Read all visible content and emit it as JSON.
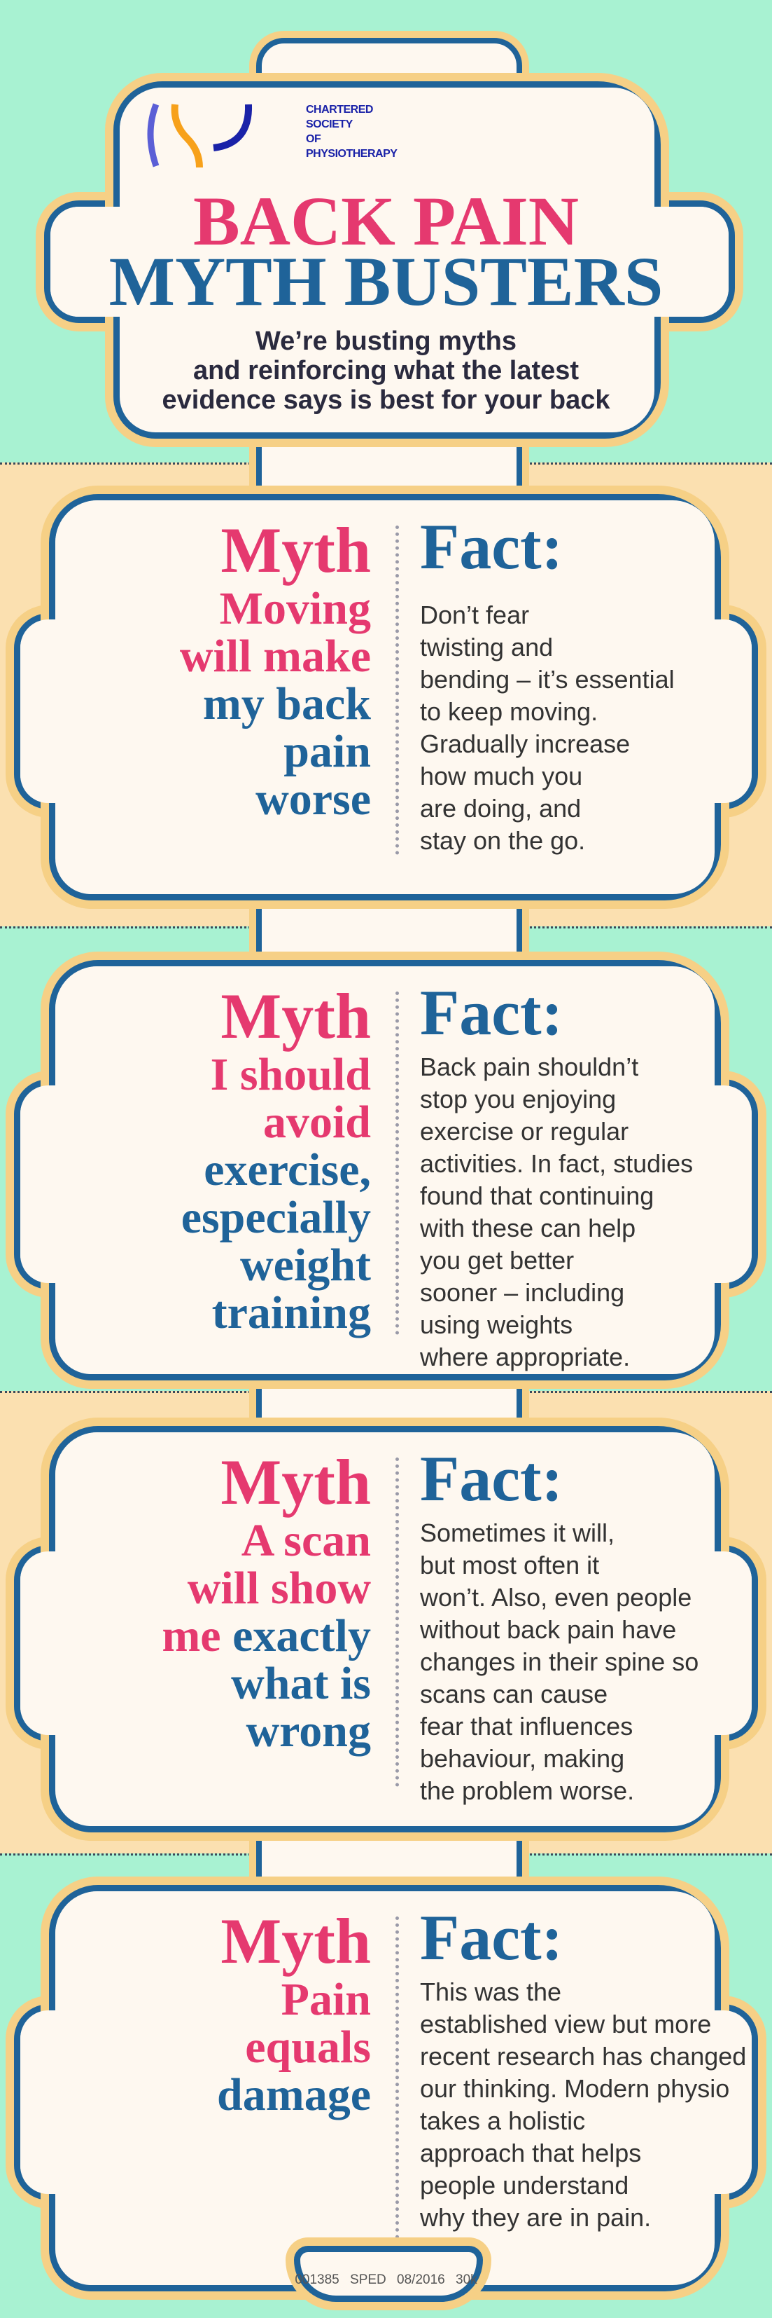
{
  "colors": {
    "background_teal": "#a8f2d2",
    "background_peach": "#fbe0b0",
    "outline_blue": "#1f6399",
    "pink": "#e5396f",
    "cream": "#fef8f0",
    "outer_outline": "#f6d086"
  },
  "logo": {
    "lines": [
      "CHARTERED",
      "SOCIETY",
      "OF",
      "PHYSIOTHERAPY"
    ],
    "icon": "csp-logo"
  },
  "header": {
    "title_line1": "BACK PAIN",
    "title_line2": "MYTH BUSTERS",
    "subtitle_lines": [
      "We’re busting myths",
      "and reinforcing what the latest",
      "evidence says is best for your back"
    ]
  },
  "cards": [
    {
      "myth_label": "Myth",
      "myth_lines": [
        [
          {
            "t": "Moving",
            "c": "pink"
          }
        ],
        [
          {
            "t": "will make",
            "c": "pink"
          }
        ],
        [
          {
            "t": "my back",
            "c": "blue"
          }
        ],
        [
          {
            "t": "pain",
            "c": "blue"
          }
        ],
        [
          {
            "t": "worse",
            "c": "blue"
          }
        ]
      ],
      "fact_label": "Fact:",
      "fact_lines": [
        "Don’t fear",
        "twisting and",
        "bending – it’s essential",
        "to keep moving.",
        "Gradually increase",
        "how much you",
        "are doing, and",
        "stay on the go."
      ]
    },
    {
      "myth_label": "Myth",
      "myth_lines": [
        [
          {
            "t": "I should",
            "c": "pink"
          }
        ],
        [
          {
            "t": "avoid",
            "c": "pink"
          }
        ],
        [
          {
            "t": "exercise,",
            "c": "blue"
          }
        ],
        [
          {
            "t": "especially",
            "c": "blue"
          }
        ],
        [
          {
            "t": "weight",
            "c": "blue"
          }
        ],
        [
          {
            "t": "training",
            "c": "blue"
          }
        ]
      ],
      "fact_label": "Fact:",
      "fact_lines": [
        "Back pain shouldn’t",
        "stop you enjoying",
        "exercise or regular",
        "activities. In fact, studies",
        "found that continuing",
        "with these can help",
        "you get better",
        "sooner – including",
        "using weights",
        "where appropriate."
      ]
    },
    {
      "myth_label": "Myth",
      "myth_lines": [
        [
          {
            "t": "A scan",
            "c": "pink"
          }
        ],
        [
          {
            "t": "will show",
            "c": "pink"
          }
        ],
        [
          {
            "t": "me ",
            "c": "pink"
          },
          {
            "t": "exactly",
            "c": "blue"
          }
        ],
        [
          {
            "t": "what is",
            "c": "blue"
          }
        ],
        [
          {
            "t": "wrong",
            "c": "blue"
          }
        ]
      ],
      "fact_label": "Fact:",
      "fact_lines": [
        "Sometimes it will,",
        "but most often it",
        "won’t. Also, even people",
        "without back pain have",
        "changes in their spine so",
        "scans can cause",
        "fear that influences",
        "behaviour, making",
        "the problem worse."
      ]
    },
    {
      "myth_label": "Myth",
      "myth_lines": [
        [
          {
            "t": "Pain",
            "c": "pink"
          }
        ],
        [
          {
            "t": "equals",
            "c": "pink"
          }
        ],
        [
          {
            "t": "damage",
            "c": "blue"
          }
        ]
      ],
      "fact_label": "Fact:",
      "fact_lines": [
        "This was the",
        "established view but more",
        "recent research has changed",
        "our thinking. Modern physio",
        "takes a holistic",
        "approach that helps",
        "people understand",
        "why they are in pain."
      ]
    }
  ],
  "footer": {
    "text": "001385 SPED 08/2016 30k"
  }
}
